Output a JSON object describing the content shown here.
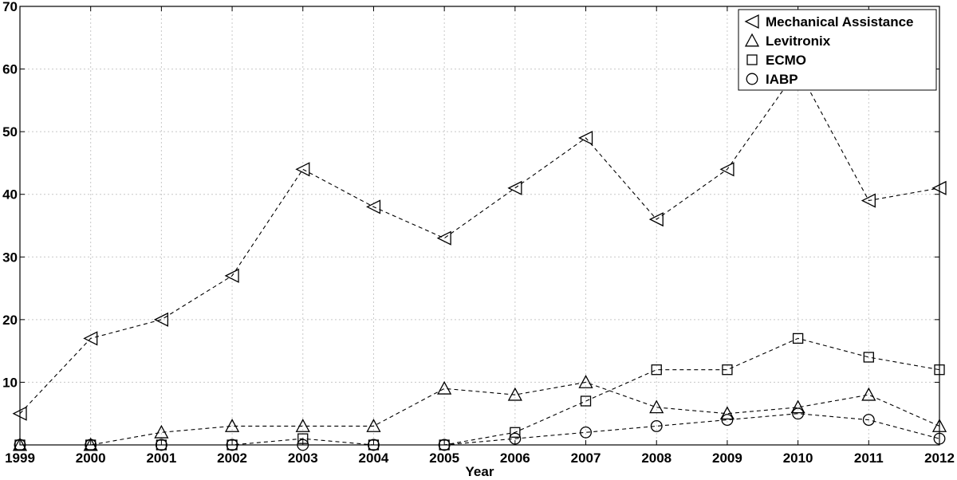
{
  "chart_data": {
    "type": "line",
    "title": "",
    "xlabel": "Year",
    "ylabel": "",
    "x": [
      1999,
      2000,
      2001,
      2002,
      2003,
      2004,
      2005,
      2006,
      2007,
      2008,
      2009,
      2010,
      2011,
      2012
    ],
    "xlim": [
      1999,
      2012
    ],
    "ylim": [
      0,
      70
    ],
    "yticks": [
      10,
      20,
      30,
      40,
      50,
      60,
      70
    ],
    "grid": true,
    "legend_position": "top-right",
    "line_style": "dashed",
    "line_color": "#000000",
    "series": [
      {
        "name": "Mechanical Assistance",
        "marker": "triangle-left",
        "values": [
          5,
          17,
          20,
          27,
          44,
          38,
          33,
          41,
          49,
          36,
          44,
          60,
          39,
          41
        ]
      },
      {
        "name": "Levitronix",
        "marker": "triangle-up",
        "values": [
          0,
          0,
          2,
          3,
          3,
          3,
          9,
          8,
          10,
          6,
          5,
          6,
          8,
          3
        ]
      },
      {
        "name": "ECMO",
        "marker": "square",
        "values": [
          0,
          0,
          0,
          0,
          1,
          0,
          0,
          2,
          7,
          12,
          12,
          17,
          14,
          12
        ]
      },
      {
        "name": "IABP",
        "marker": "circle",
        "values": [
          0,
          0,
          0,
          0,
          0,
          0,
          0,
          1,
          2,
          3,
          4,
          5,
          4,
          1
        ]
      }
    ]
  }
}
